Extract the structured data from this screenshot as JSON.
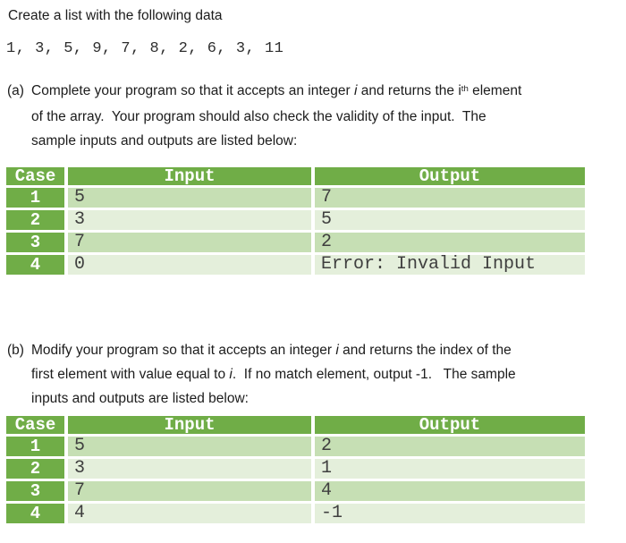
{
  "doc": {
    "title": "Create a list with the following data",
    "data_line": "1, 3, 5, 9, 7, 8, 2, 6, 3, 11"
  },
  "colors": {
    "table_header_green": "#70ad47",
    "row_band_light": "#c6dfb4",
    "row_band_lighter": "#e4efdb",
    "table_text": "#3f3f3f",
    "body_text": "#1c1c1c"
  },
  "questions": [
    {
      "label": "(a)",
      "lines": [
        [
          {
            "t": "Complete your program so that it accepts an integer "
          },
          {
            "t": "i",
            "s": "italic"
          },
          {
            "t": " and returns the i"
          },
          {
            "t": "th",
            "s": "sup"
          },
          {
            "t": " element"
          }
        ],
        [
          {
            "t": "of the array.  Your program should also check the validity of the input.  The"
          }
        ],
        [
          {
            "t": "sample inputs and outputs are listed below:"
          }
        ]
      ],
      "table": {
        "headers": [
          "Case",
          "Input",
          "Output"
        ],
        "rows": [
          {
            "case": "1",
            "input": "5",
            "output": "7"
          },
          {
            "case": "2",
            "input": "3",
            "output": "5"
          },
          {
            "case": "3",
            "input": "7",
            "output": "2"
          },
          {
            "case": "4",
            "input": "0",
            "output": "Error: Invalid Input"
          }
        ]
      }
    },
    {
      "label": "(b)",
      "lines": [
        [
          {
            "t": "Modify your program so that it accepts an integer "
          },
          {
            "t": "i",
            "s": "italic"
          },
          {
            "t": " and returns the index of the"
          }
        ],
        [
          {
            "t": "first element with value equal to "
          },
          {
            "t": "i",
            "s": "italic"
          },
          {
            "t": ".  If no match element, output -1.   The sample"
          }
        ],
        [
          {
            "t": "inputs and outputs are listed below:"
          }
        ]
      ],
      "table": {
        "headers": [
          "Case",
          "Input",
          "Output"
        ],
        "rows": [
          {
            "case": "1",
            "input": "5",
            "output": "2"
          },
          {
            "case": "2",
            "input": "3",
            "output": "1"
          },
          {
            "case": "3",
            "input": "7",
            "output": "4"
          },
          {
            "case": "4",
            "input": "4",
            "output": "-1"
          }
        ]
      }
    }
  ]
}
